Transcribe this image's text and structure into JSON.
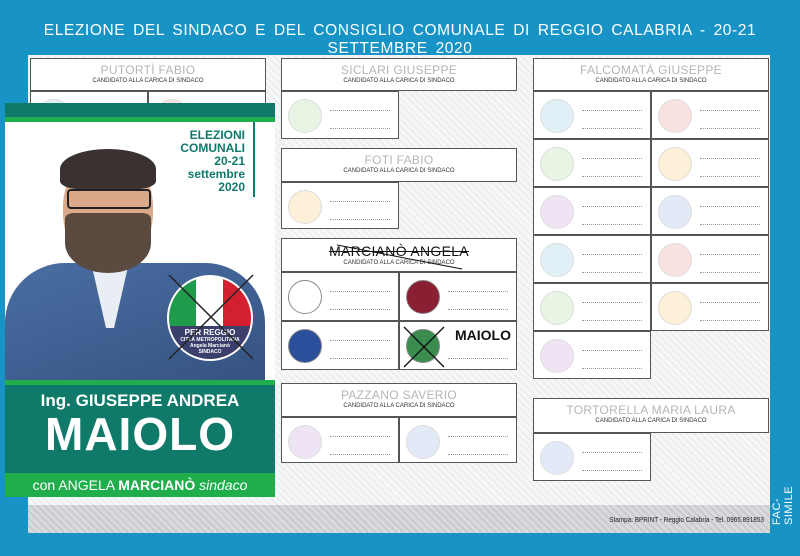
{
  "title": "ELEZIONE DEL SINDACO E DEL CONSIGLIO COMUNALE DI REGGIO CALABRIA - 20-21 SETTEMBRE 2020",
  "candidate_subtitle": "CANDIDATO ALLA CARICA DI SINDACO",
  "candidates": [
    {
      "name": "PUTORTÌ FABIO"
    },
    {
      "name": "SICLARI GIUSEPPE"
    },
    {
      "name": "FOTI FABIO"
    },
    {
      "name": "MARCIANÒ ANGELA",
      "crossed": true
    },
    {
      "name": "PAZZANO SAVERIO"
    },
    {
      "name": "FALCOMATÀ GIUSEPPE"
    },
    {
      "name": "TORTORELLA MARIA LAURA"
    }
  ],
  "preference_write_in": "MAIOLO",
  "poster": {
    "elezioni": [
      "ELEZIONI",
      "COMUNALI",
      "20-21",
      "settembre",
      "2020"
    ],
    "logo_text": "PER REGGIO",
    "logo_sub": "CITTÀ METROPOLITANA",
    "logo_leader": "Angela Marcianò",
    "logo_role": "SINDACO",
    "prefix": "Ing. GIUSEPPE ANDREA",
    "surname": "MAIOLO",
    "with_pre": "con ANGELA",
    "with_name": "MARCIANÒ",
    "with_post": "sindaco"
  },
  "printer": "Stampa: BPRINT - Reggio Calabria - Tel. 0965.891853",
  "facsimile": "FAC-SIMILE",
  "colors": {
    "background": "#1793c6",
    "teal": "#0f7a6a",
    "green": "#1fae4b"
  }
}
